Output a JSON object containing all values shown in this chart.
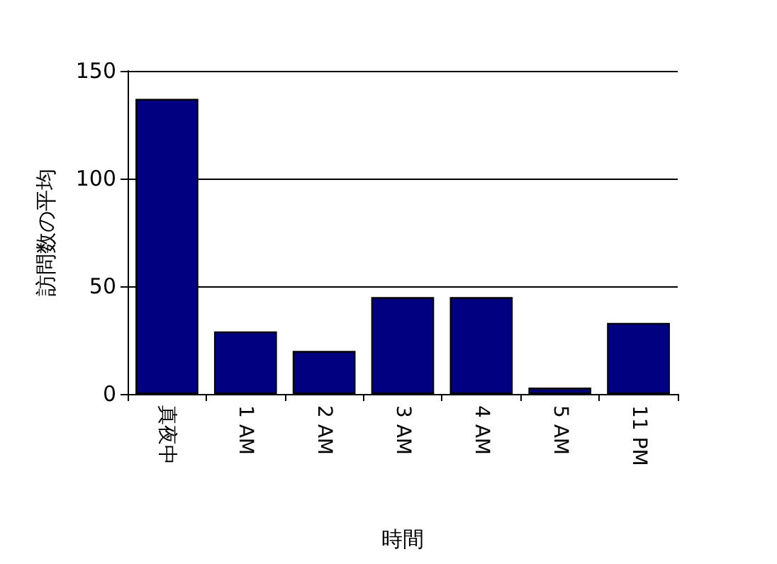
{
  "chart_data": {
    "type": "bar",
    "xlabel": "時間",
    "ylabel": "訪問数の平均",
    "categories": [
      "真夜中",
      "1 AM",
      "2 AM",
      "3 AM",
      "4 AM",
      "5 AM",
      "11 PM"
    ],
    "values": [
      137,
      29,
      20,
      45,
      45,
      3,
      33
    ],
    "color": "#000080",
    "ylim": [
      0,
      150
    ],
    "yticks": [
      0,
      50,
      100,
      150
    ],
    "grid": "y"
  }
}
